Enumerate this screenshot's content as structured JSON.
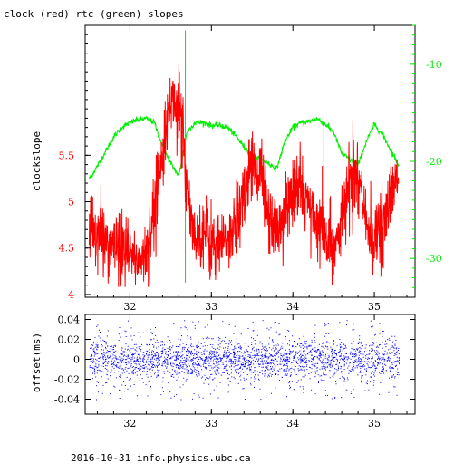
{
  "title": "clock (red) rtc (green) slopes",
  "footer": "2016-10-31 info.physics.ubc.ca",
  "colors": {
    "clock": "#ff0000",
    "rtc": "#00ee00",
    "offset": "#0000ff",
    "axis": "#000000"
  },
  "chart_data": [
    {
      "type": "line",
      "title": "clock (red) rtc (green) slopes",
      "ylabel": "clockslope",
      "xlim": [
        31.45,
        35.5
      ],
      "ylim": [
        3.97,
        6.9
      ],
      "y2lim": [
        -34.0,
        -6.0
      ],
      "x_ticks": [
        "32",
        "33",
        "34",
        "35"
      ],
      "y_ticks": [
        "4",
        "4.5",
        "5",
        "5.5"
      ],
      "y2_ticks": [
        "-10",
        "-20",
        "-30"
      ],
      "grid": false,
      "series": [
        {
          "name": "clock",
          "axis": "left",
          "x": [
            31.5,
            31.65,
            31.8,
            31.95,
            32.1,
            32.2,
            32.3,
            32.4,
            32.5,
            32.6,
            32.7,
            32.8,
            32.9,
            33.0,
            33.1,
            33.2,
            33.3,
            33.4,
            33.5,
            33.6,
            33.7,
            33.8,
            33.9,
            34.0,
            34.1,
            34.2,
            34.3,
            34.4,
            34.5,
            34.6,
            34.7,
            34.8,
            34.9,
            35.0,
            35.1,
            35.2,
            35.3
          ],
          "values": [
            4.75,
            4.62,
            4.5,
            4.42,
            4.38,
            4.45,
            4.9,
            5.6,
            6.1,
            6.05,
            5.2,
            4.6,
            4.7,
            4.55,
            4.5,
            4.6,
            4.72,
            5.1,
            5.45,
            5.3,
            4.9,
            4.7,
            4.85,
            5.1,
            5.15,
            4.95,
            4.75,
            4.6,
            4.52,
            4.8,
            5.2,
            5.3,
            4.75,
            4.6,
            4.7,
            5.05,
            5.3
          ]
        },
        {
          "name": "rtc",
          "axis": "right",
          "x": [
            31.5,
            31.6,
            31.7,
            31.8,
            31.9,
            32.0,
            32.1,
            32.2,
            32.3,
            32.4,
            32.5,
            32.6,
            32.7,
            32.8,
            32.9,
            33.0,
            33.1,
            33.2,
            33.3,
            33.4,
            33.5,
            33.6,
            33.7,
            33.8,
            33.9,
            34.0,
            34.1,
            34.2,
            34.3,
            34.4,
            34.5,
            34.6,
            34.7,
            34.8,
            34.9,
            35.0,
            35.1,
            35.2,
            35.3
          ],
          "values": [
            -21.8,
            -20.5,
            -19.0,
            -17.5,
            -16.5,
            -16.0,
            -15.7,
            -15.6,
            -16.0,
            -18.5,
            -20.2,
            -21.5,
            -17.0,
            -16.0,
            -16.0,
            -16.3,
            -16.3,
            -16.5,
            -17.4,
            -18.5,
            -19.3,
            -19.8,
            -20.2,
            -20.8,
            -18.0,
            -16.5,
            -16.0,
            -15.9,
            -15.6,
            -16.2,
            -17.0,
            -19.2,
            -19.8,
            -20.4,
            -18.0,
            -16.2,
            -17.2,
            -18.8,
            -20.4
          ]
        }
      ]
    },
    {
      "type": "scatter",
      "ylabel": "offset(ms)",
      "xlim": [
        31.45,
        35.5
      ],
      "ylim": [
        -0.055,
        0.045
      ],
      "x_ticks": [
        "32",
        "33",
        "34",
        "35"
      ],
      "y_ticks": [
        "0.04",
        "0.02",
        "0",
        "-0.02",
        "-0.04"
      ],
      "grid": false,
      "series": [
        {
          "name": "offset",
          "x_range": [
            31.5,
            35.3
          ],
          "center": 0.0,
          "core_spread": 0.01,
          "max_abs": 0.04
        }
      ]
    }
  ]
}
